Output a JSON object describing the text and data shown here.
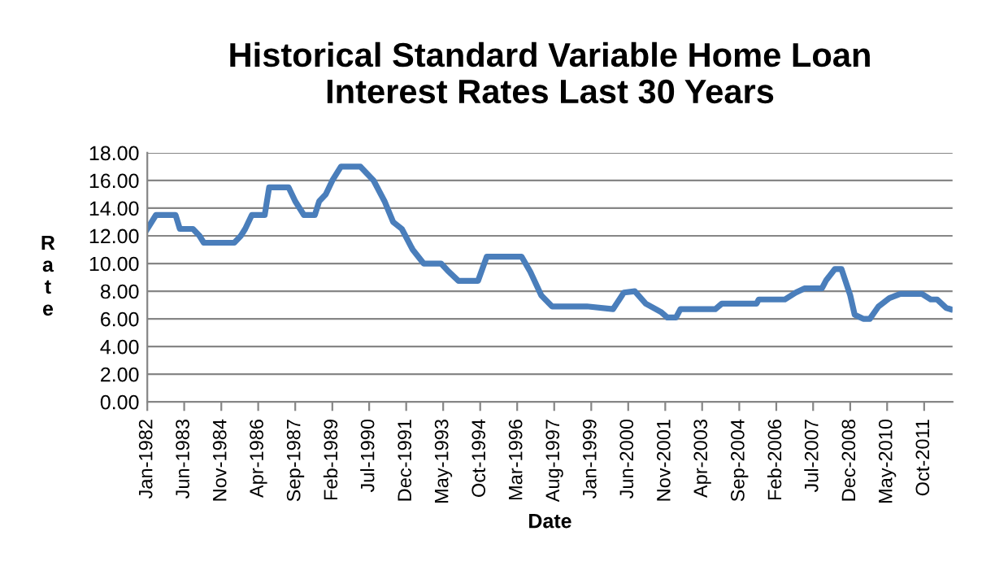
{
  "chart_data": {
    "type": "line",
    "title": "Historical Standard Variable Home Loan\nInterest Rates Last 30 Years",
    "xlabel": "Date",
    "ylabel": "Rate",
    "x": [
      "1982-01",
      "1982-05",
      "1983-02",
      "1983-04",
      "1983-10",
      "1984-01",
      "1984-03",
      "1985-05",
      "1985-08",
      "1985-10",
      "1986-01",
      "1986-07",
      "1986-09",
      "1987-06",
      "1987-09",
      "1988-01",
      "1988-06",
      "1988-08",
      "1988-11",
      "1989-02",
      "1989-06",
      "1990-03",
      "1990-06",
      "1990-09",
      "1991-02",
      "1991-06",
      "1991-10",
      "1992-03",
      "1992-08",
      "1993-04",
      "1993-07",
      "1993-12",
      "1994-09",
      "1995-01",
      "1996-05",
      "1996-09",
      "1997-02",
      "1997-07",
      "1998-11",
      "1999-11",
      "2000-04",
      "2000-09",
      "2001-02",
      "2001-09",
      "2001-12",
      "2002-04",
      "2002-06",
      "2003-10",
      "2004-01",
      "2005-05",
      "2005-06",
      "2006-06",
      "2006-11",
      "2007-03",
      "2007-11",
      "2008-01",
      "2008-05",
      "2008-08",
      "2008-12",
      "2009-02",
      "2009-06",
      "2009-09",
      "2010-01",
      "2010-06",
      "2010-11",
      "2011-09",
      "2012-01",
      "2012-04",
      "2012-08",
      "2012-10"
    ],
    "series": [
      {
        "color": "#4a7ebb",
        "values": [
          12.5,
          13.5,
          13.5,
          12.5,
          12.5,
          12.0,
          11.5,
          11.5,
          12.0,
          12.5,
          13.5,
          13.5,
          15.5,
          15.5,
          14.5,
          13.5,
          13.5,
          14.5,
          15.0,
          16.0,
          17.0,
          17.0,
          16.5,
          16.0,
          14.5,
          13.0,
          12.5,
          11.0,
          10.0,
          10.0,
          9.5,
          8.75,
          8.75,
          10.5,
          10.5,
          9.4,
          7.7,
          6.9,
          6.9,
          6.7,
          7.9,
          8.0,
          7.1,
          6.5,
          6.1,
          6.1,
          6.7,
          6.7,
          7.1,
          7.1,
          7.4,
          7.4,
          7.9,
          8.2,
          8.2,
          8.8,
          9.6,
          9.6,
          7.7,
          6.3,
          6.0,
          6.0,
          6.9,
          7.5,
          7.8,
          7.8,
          7.4,
          7.4,
          6.8,
          6.7
        ]
      }
    ],
    "xlim": [
      "1982-01",
      "2012-11"
    ],
    "xticks": [
      {
        "value": "1982-01",
        "label": "Jan-1982"
      },
      {
        "value": "1983-06",
        "label": "Jun-1983"
      },
      {
        "value": "1984-11",
        "label": "Nov-1984"
      },
      {
        "value": "1986-04",
        "label": "Apr-1986"
      },
      {
        "value": "1987-09",
        "label": "Sep-1987"
      },
      {
        "value": "1989-02",
        "label": "Feb-1989"
      },
      {
        "value": "1990-07",
        "label": "Jul-1990"
      },
      {
        "value": "1991-12",
        "label": "Dec-1991"
      },
      {
        "value": "1993-05",
        "label": "May-1993"
      },
      {
        "value": "1994-10",
        "label": "Oct-1994"
      },
      {
        "value": "1996-03",
        "label": "Mar-1996"
      },
      {
        "value": "1997-08",
        "label": "Aug-1997"
      },
      {
        "value": "1999-01",
        "label": "Jan-1999"
      },
      {
        "value": "2000-06",
        "label": "Jun-2000"
      },
      {
        "value": "2001-11",
        "label": "Nov-2001"
      },
      {
        "value": "2003-04",
        "label": "Apr-2003"
      },
      {
        "value": "2004-09",
        "label": "Sep-2004"
      },
      {
        "value": "2006-02",
        "label": "Feb-2006"
      },
      {
        "value": "2007-07",
        "label": "Jul-2007"
      },
      {
        "value": "2008-12",
        "label": "Dec-2008"
      },
      {
        "value": "2010-05",
        "label": "May-2010"
      },
      {
        "value": "2011-10",
        "label": "Oct-2011"
      }
    ],
    "ylim": [
      0,
      18
    ],
    "yticks": [
      {
        "value": 0,
        "label": "0.00"
      },
      {
        "value": 2,
        "label": "2.00"
      },
      {
        "value": 4,
        "label": "4.00"
      },
      {
        "value": 6,
        "label": "6.00"
      },
      {
        "value": 8,
        "label": "8.00"
      },
      {
        "value": 10,
        "label": "10.00"
      },
      {
        "value": 12,
        "label": "12.00"
      },
      {
        "value": 14,
        "label": "14.00"
      },
      {
        "value": 16,
        "label": "16.00"
      },
      {
        "value": 18,
        "label": "18.00"
      }
    ],
    "grid": "y",
    "legend": false,
    "marker": "none",
    "line_style": "solid"
  }
}
